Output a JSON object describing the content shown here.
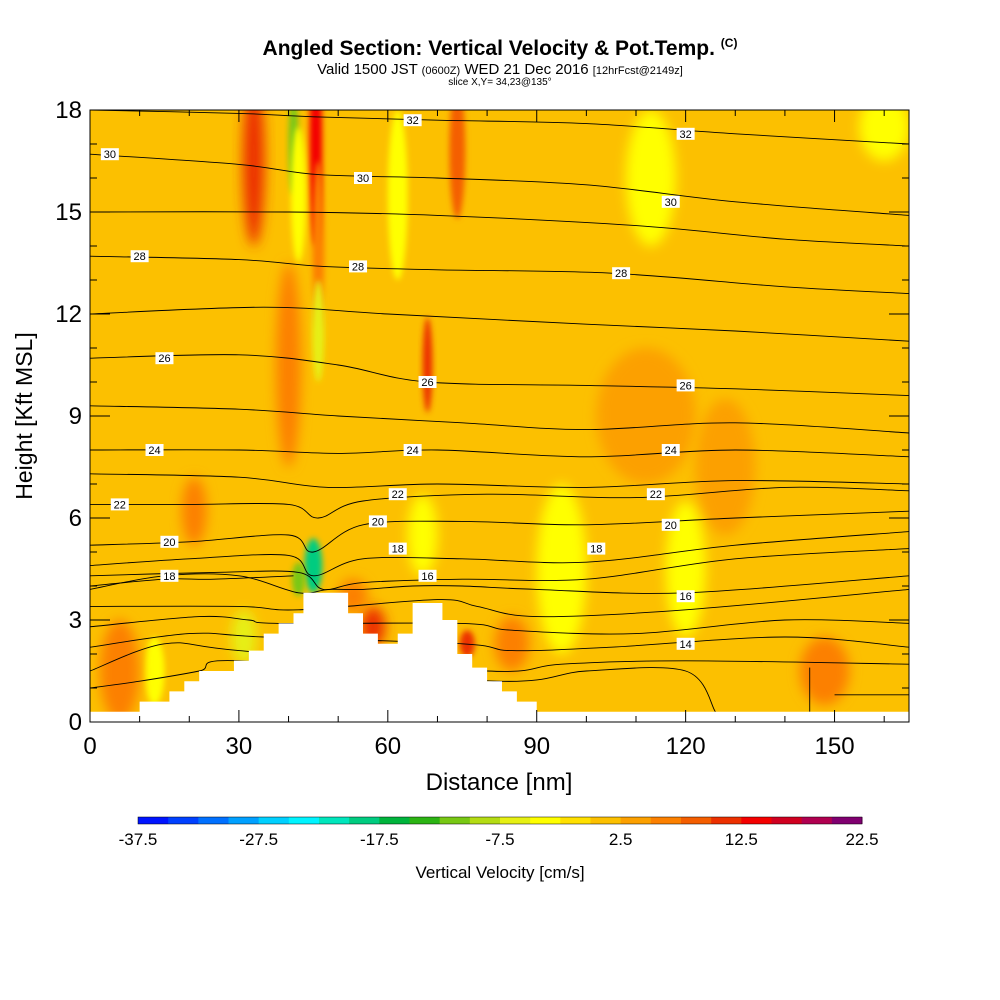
{
  "header": {
    "title": "Angled Section: Vertical Velocity & Pot.Temp.",
    "title_tag": "(C)",
    "valid_prefix": "Valid 1500 JST",
    "valid_utc": "(0600Z)",
    "valid_date": "WED 21 Dec 2016",
    "forecast_tag": "[12hrFcst@2149z]",
    "slice": "slice X,Y= 34,23@135°"
  },
  "chart_data": {
    "type": "heatmap",
    "xlabel": "Distance [nm]",
    "ylabel": "Height [Kft MSL]",
    "xlim": [
      0,
      165
    ],
    "ylim": [
      0,
      18
    ],
    "x_ticks": [
      "0",
      "30",
      "60",
      "90",
      "120",
      "150"
    ],
    "y_ticks": [
      "0",
      "3",
      "6",
      "9",
      "12",
      "15",
      "18"
    ],
    "background_color": "#fcc000",
    "terrain_profile": [
      [
        0,
        0.3
      ],
      [
        10,
        0.3
      ],
      [
        10,
        0.6
      ],
      [
        16,
        0.6
      ],
      [
        16,
        0.9
      ],
      [
        19,
        0.9
      ],
      [
        19,
        1.2
      ],
      [
        22,
        1.2
      ],
      [
        22,
        1.5
      ],
      [
        29,
        1.5
      ],
      [
        29,
        1.8
      ],
      [
        32,
        1.8
      ],
      [
        32,
        2.1
      ],
      [
        35,
        2.1
      ],
      [
        35,
        2.6
      ],
      [
        38,
        2.6
      ],
      [
        38,
        2.9
      ],
      [
        41,
        2.9
      ],
      [
        41,
        3.2
      ],
      [
        43,
        3.2
      ],
      [
        43,
        3.8
      ],
      [
        52,
        3.8
      ],
      [
        52,
        3.2
      ],
      [
        55,
        3.2
      ],
      [
        55,
        2.6
      ],
      [
        58,
        2.6
      ],
      [
        58,
        2.3
      ],
      [
        62,
        2.3
      ],
      [
        62,
        2.6
      ],
      [
        65,
        2.6
      ],
      [
        65,
        3.5
      ],
      [
        71,
        3.5
      ],
      [
        71,
        3.0
      ],
      [
        74,
        3.0
      ],
      [
        74,
        2.0
      ],
      [
        77,
        2.0
      ],
      [
        77,
        1.6
      ],
      [
        80,
        1.6
      ],
      [
        80,
        1.2
      ],
      [
        83,
        1.2
      ],
      [
        83,
        0.9
      ],
      [
        86,
        0.9
      ],
      [
        86,
        0.6
      ],
      [
        90,
        0.6
      ],
      [
        90,
        0.3
      ],
      [
        165,
        0.3
      ]
    ],
    "velocity_features": [
      {
        "x": 33,
        "y": 16.5,
        "rx": 2.2,
        "ry": 2.5,
        "value": 12
      },
      {
        "x": 45.5,
        "y": 17.0,
        "rx": 1.3,
        "ry": 3.0,
        "value": 13
      },
      {
        "x": 46,
        "y": 14.0,
        "rx": 1.2,
        "ry": 2.5,
        "value": 7
      },
      {
        "x": 41,
        "y": 17.0,
        "rx": 1.0,
        "ry": 1.5,
        "value": -12
      },
      {
        "x": 42,
        "y": 15.5,
        "rx": 1.5,
        "ry": 2.0,
        "value": -5
      },
      {
        "x": 74,
        "y": 16.8,
        "rx": 1.6,
        "ry": 2.0,
        "value": 9
      },
      {
        "x": 68,
        "y": 10.5,
        "rx": 1.0,
        "ry": 1.4,
        "value": 11
      },
      {
        "x": 40,
        "y": 10.5,
        "rx": 2.5,
        "ry": 3.0,
        "value": 6
      },
      {
        "x": 46,
        "y": 11.5,
        "rx": 1.2,
        "ry": 1.5,
        "value": -6
      },
      {
        "x": 21,
        "y": 6.2,
        "rx": 2.5,
        "ry": 1.0,
        "value": 6
      },
      {
        "x": 45,
        "y": 4.6,
        "rx": 1.8,
        "ry": 0.8,
        "value": -20
      },
      {
        "x": 42,
        "y": 4.2,
        "rx": 1.3,
        "ry": 0.5,
        "value": -12
      },
      {
        "x": 57,
        "y": 2.8,
        "rx": 2.5,
        "ry": 0.6,
        "value": 12
      },
      {
        "x": 53,
        "y": 3.7,
        "rx": 3.0,
        "ry": 0.5,
        "value": 7
      },
      {
        "x": 67,
        "y": 5.5,
        "rx": 3.0,
        "ry": 1.2,
        "value": -5
      },
      {
        "x": 76,
        "y": 2.3,
        "rx": 1.5,
        "ry": 0.4,
        "value": 11
      },
      {
        "x": 85,
        "y": 2.3,
        "rx": 3.5,
        "ry": 0.8,
        "value": 6
      },
      {
        "x": 31,
        "y": 2.5,
        "rx": 2.5,
        "ry": 0.8,
        "value": -6
      },
      {
        "x": 13,
        "y": 1.5,
        "rx": 2.0,
        "ry": 1.0,
        "value": -5
      },
      {
        "x": 6,
        "y": 1.5,
        "rx": 4.0,
        "ry": 1.5,
        "value": 6
      },
      {
        "x": 95,
        "y": 4.5,
        "rx": 5.0,
        "ry": 2.5,
        "value": -4
      },
      {
        "x": 112,
        "y": 9.0,
        "rx": 10.0,
        "ry": 2.0,
        "value": 4
      },
      {
        "x": 128,
        "y": 7.5,
        "rx": 6.0,
        "ry": 2.0,
        "value": 4
      },
      {
        "x": 113,
        "y": 16.0,
        "rx": 5.0,
        "ry": 2.0,
        "value": -4
      },
      {
        "x": 120,
        "y": 4.5,
        "rx": 4.0,
        "ry": 2.0,
        "value": -3
      },
      {
        "x": 160,
        "y": 17.5,
        "rx": 5.0,
        "ry": 1.0,
        "value": -4
      },
      {
        "x": 148,
        "y": 1.5,
        "rx": 5.0,
        "ry": 1.0,
        "value": 5
      },
      {
        "x": 62,
        "y": 15.5,
        "rx": 2.0,
        "ry": 2.5,
        "value": -3
      }
    ],
    "isentropes": [
      {
        "label": "32",
        "points": [
          [
            0,
            18.0
          ],
          [
            30,
            17.9
          ],
          [
            45,
            17.8
          ],
          [
            70,
            17.7
          ],
          [
            100,
            17.6
          ],
          [
            130,
            17.3
          ],
          [
            165,
            17.0
          ]
        ],
        "label_positions": [
          [
            65,
            17.7
          ],
          [
            120,
            17.3
          ]
        ]
      },
      {
        "label": "30",
        "points": [
          [
            0,
            16.7
          ],
          [
            30,
            16.4
          ],
          [
            46,
            16.1
          ],
          [
            70,
            16.0
          ],
          [
            100,
            15.8
          ],
          [
            130,
            15.3
          ],
          [
            165,
            14.9
          ]
        ],
        "label_positions": [
          [
            4,
            16.7
          ],
          [
            55,
            16.0
          ],
          [
            117,
            15.3
          ]
        ]
      },
      {
        "label": "",
        "points": [
          [
            0,
            15.0
          ],
          [
            40,
            15.0
          ],
          [
            70,
            14.9
          ],
          [
            110,
            14.6
          ],
          [
            140,
            14.2
          ],
          [
            165,
            14.0
          ]
        ],
        "label_positions": []
      },
      {
        "label": "28",
        "points": [
          [
            0,
            13.7
          ],
          [
            30,
            13.6
          ],
          [
            47,
            13.4
          ],
          [
            70,
            13.3
          ],
          [
            105,
            13.2
          ],
          [
            140,
            12.8
          ],
          [
            165,
            12.6
          ]
        ],
        "label_positions": [
          [
            10,
            13.7
          ],
          [
            54,
            13.4
          ],
          [
            107,
            13.2
          ]
        ]
      },
      {
        "label": "",
        "points": [
          [
            0,
            12.0
          ],
          [
            35,
            12.2
          ],
          [
            60,
            12.0
          ],
          [
            100,
            11.7
          ],
          [
            130,
            11.5
          ],
          [
            165,
            11.2
          ]
        ],
        "label_positions": []
      },
      {
        "label": "26",
        "points": [
          [
            0,
            10.7
          ],
          [
            30,
            10.8
          ],
          [
            50,
            10.5
          ],
          [
            68,
            10.0
          ],
          [
            100,
            9.9
          ],
          [
            130,
            9.8
          ],
          [
            165,
            9.6
          ]
        ],
        "label_positions": [
          [
            15,
            10.7
          ],
          [
            68,
            10.0
          ],
          [
            120,
            9.9
          ]
        ]
      },
      {
        "label": "",
        "points": [
          [
            0,
            9.3
          ],
          [
            30,
            9.2
          ],
          [
            50,
            9.0
          ],
          [
            75,
            8.8
          ],
          [
            100,
            8.6
          ],
          [
            130,
            8.8
          ],
          [
            165,
            8.5
          ]
        ],
        "label_positions": []
      },
      {
        "label": "24",
        "points": [
          [
            0,
            8.0
          ],
          [
            30,
            8.0
          ],
          [
            50,
            7.9
          ],
          [
            70,
            8.0
          ],
          [
            100,
            7.8
          ],
          [
            130,
            8.0
          ],
          [
            165,
            7.8
          ]
        ],
        "label_positions": [
          [
            13,
            8.0
          ],
          [
            65,
            8.0
          ],
          [
            117,
            8.0
          ]
        ]
      },
      {
        "label": "",
        "points": [
          [
            0,
            7.3
          ],
          [
            30,
            7.2
          ],
          [
            48,
            6.9
          ],
          [
            70,
            7.0
          ],
          [
            100,
            6.9
          ],
          [
            130,
            7.1
          ],
          [
            165,
            7.0
          ]
        ],
        "label_positions": []
      },
      {
        "label": "22",
        "points": [
          [
            0,
            6.4
          ],
          [
            20,
            6.4
          ],
          [
            40,
            6.4
          ],
          [
            46,
            6.0
          ],
          [
            55,
            6.5
          ],
          [
            80,
            6.7
          ],
          [
            110,
            6.6
          ],
          [
            140,
            6.9
          ],
          [
            165,
            6.8
          ]
        ],
        "label_positions": [
          [
            6,
            6.4
          ],
          [
            62,
            6.7
          ],
          [
            114,
            6.7
          ]
        ]
      },
      {
        "label": "20",
        "points": [
          [
            0,
            5.2
          ],
          [
            20,
            5.3
          ],
          [
            40,
            5.5
          ],
          [
            45,
            5.0
          ],
          [
            55,
            5.8
          ],
          [
            75,
            5.9
          ],
          [
            100,
            5.8
          ],
          [
            130,
            6.0
          ],
          [
            165,
            6.2
          ]
        ],
        "label_positions": [
          [
            16,
            5.3
          ],
          [
            58,
            5.9
          ],
          [
            117,
            5.8
          ]
        ]
      },
      {
        "label": "18",
        "points": [
          [
            0,
            4.6
          ],
          [
            20,
            4.8
          ],
          [
            40,
            4.9
          ],
          [
            45,
            4.3
          ],
          [
            55,
            4.8
          ],
          [
            75,
            4.8
          ],
          [
            100,
            4.7
          ],
          [
            130,
            5.2
          ],
          [
            165,
            5.6
          ]
        ],
        "label_positions": [
          [
            62,
            5.1
          ],
          [
            102,
            5.1
          ]
        ]
      },
      {
        "label": "",
        "points": [
          [
            0,
            4.3
          ],
          [
            25,
            4.4
          ],
          [
            42,
            4.4
          ],
          [
            47,
            3.9
          ],
          [
            55,
            4.1
          ],
          [
            75,
            4.2
          ],
          [
            100,
            4.2
          ],
          [
            130,
            4.8
          ],
          [
            165,
            5.1
          ]
        ],
        "label_positions": []
      },
      {
        "label": "16",
        "points": [
          [
            0,
            3.9
          ],
          [
            15,
            4.3
          ],
          [
            30,
            4.3
          ],
          [
            42,
            3.8
          ],
          [
            48,
            3.9
          ],
          [
            55,
            3.9
          ],
          [
            65,
            4.0
          ],
          [
            75,
            4.0
          ],
          [
            90,
            3.9
          ],
          [
            120,
            3.8
          ],
          [
            165,
            4.3
          ]
        ],
        "label_positions": [
          [
            68,
            4.3
          ],
          [
            120,
            3.7
          ]
        ]
      },
      {
        "label": "18",
        "points": [
          [
            0,
            4.0
          ],
          [
            15,
            4.2
          ],
          [
            25,
            4.2
          ],
          [
            41,
            4.3
          ]
        ],
        "label_positions": [
          [
            16,
            4.3
          ]
        ]
      },
      {
        "label": "",
        "points": [
          [
            0,
            3.4
          ],
          [
            30,
            3.4
          ],
          [
            42,
            3.3
          ],
          [
            70,
            3.6
          ],
          [
            78,
            3.4
          ],
          [
            90,
            3.1
          ],
          [
            120,
            3.3
          ],
          [
            165,
            3.9
          ]
        ],
        "label_positions": []
      },
      {
        "label": "",
        "points": [
          [
            0,
            2.8
          ],
          [
            22,
            3.1
          ],
          [
            32,
            3.0
          ],
          [
            38,
            2.9
          ],
          [
            75,
            2.9
          ],
          [
            85,
            2.7
          ],
          [
            110,
            2.6
          ],
          [
            140,
            3.0
          ],
          [
            165,
            2.9
          ]
        ],
        "label_positions": []
      },
      {
        "label": "14",
        "points": [
          [
            0,
            2.2
          ],
          [
            20,
            2.6
          ],
          [
            35,
            2.5
          ],
          [
            75,
            2.3
          ],
          [
            85,
            2.1
          ],
          [
            105,
            2.2
          ],
          [
            140,
            2.5
          ],
          [
            165,
            2.2
          ]
        ],
        "label_positions": [
          [
            120,
            2.3
          ]
        ]
      },
      {
        "label": "",
        "points": [
          [
            0,
            1.5
          ],
          [
            15,
            2.3
          ],
          [
            30,
            2.1
          ],
          [
            80,
            1.5
          ],
          [
            95,
            1.7
          ],
          [
            120,
            1.8
          ],
          [
            165,
            1.7
          ]
        ],
        "label_positions": []
      },
      {
        "label": "",
        "points": [
          [
            0,
            1.0
          ],
          [
            10,
            1.2
          ],
          [
            22,
            1.5
          ],
          [
            30,
            1.8
          ],
          [
            82,
            1.2
          ],
          [
            100,
            1.5
          ],
          [
            120,
            1.5
          ],
          [
            126,
            0.3
          ]
        ],
        "label_positions": []
      },
      {
        "label": "",
        "points": [
          [
            145,
            1.6
          ],
          [
            145,
            0.3
          ]
        ],
        "label_positions": []
      },
      {
        "label": "",
        "points": [
          [
            150,
            0.8
          ],
          [
            160,
            0.8
          ],
          [
            165,
            0.8
          ]
        ],
        "label_positions": []
      }
    ],
    "colorbar": {
      "title": "Vertical Velocity [cm/s]",
      "min": -37.5,
      "max": 22.5,
      "step": 2.5,
      "tick_labels": [
        "-37.5",
        "-27.5",
        "-17.5",
        "-7.5",
        "2.5",
        "12.5",
        "22.5"
      ],
      "colors": [
        "#0014ff",
        "#0040ff",
        "#0070ff",
        "#00a0ff",
        "#00d0ff",
        "#00f4ff",
        "#00e6bc",
        "#00cc80",
        "#00b43c",
        "#2cb414",
        "#78c814",
        "#b4dc14",
        "#e6f014",
        "#ffff00",
        "#ffe000",
        "#fcc000",
        "#fca000",
        "#fc8000",
        "#f45e00",
        "#ec3000",
        "#f40000",
        "#d00020",
        "#b00050",
        "#800070"
      ]
    }
  }
}
